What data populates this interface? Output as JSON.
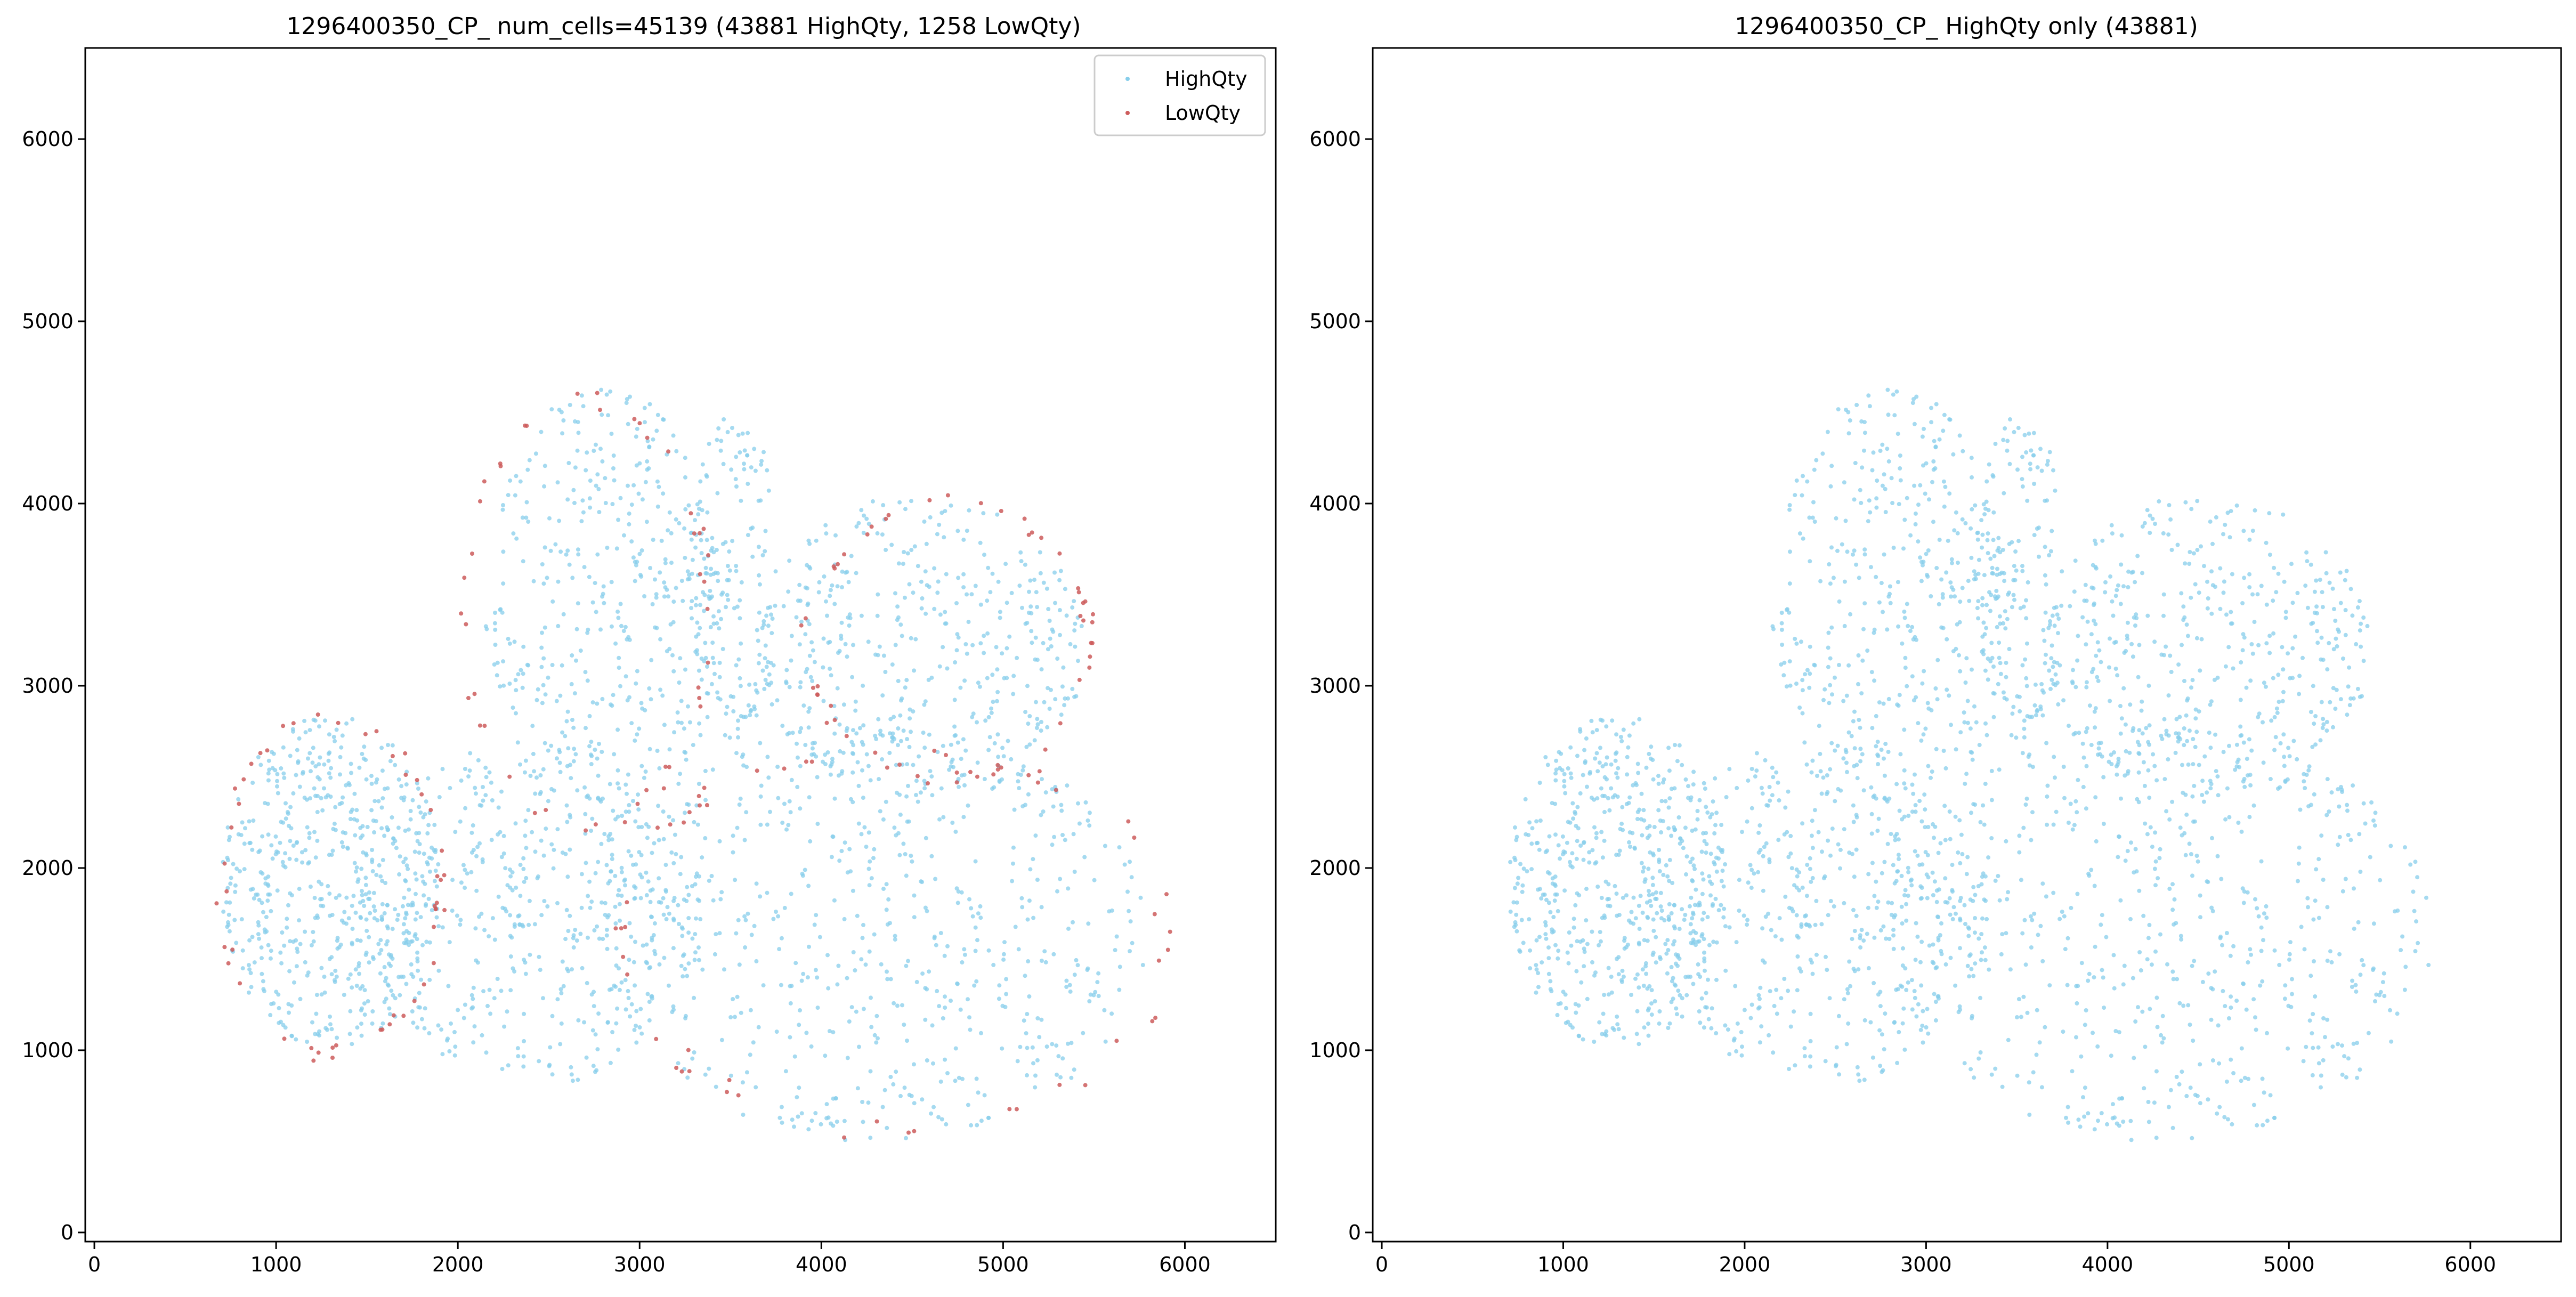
{
  "chart_data": [
    {
      "type": "scatter",
      "title": "1296400350_CP_ num_cells=45139 (43881 HighQty, 1258 LowQty)",
      "xlim": [
        -50,
        6500
      ],
      "ylim": [
        -50,
        6500
      ],
      "xticks": [
        0,
        1000,
        2000,
        3000,
        4000,
        5000,
        6000
      ],
      "yticks": [
        0,
        1000,
        2000,
        3000,
        4000,
        5000,
        6000
      ],
      "xtick_labels": [
        "0",
        "1000",
        "2000",
        "3000",
        "4000",
        "5000",
        "6000"
      ],
      "ytick_labels": [
        "0",
        "1000",
        "2000",
        "3000",
        "4000",
        "5000",
        "6000"
      ],
      "grid": false,
      "legend": {
        "placement": "top-right",
        "entries": [
          {
            "label": "HighQty",
            "color": "#87ceeb"
          },
          {
            "label": "LowQty",
            "color": "#cd5c5c"
          }
        ]
      },
      "series": [
        {
          "name": "HighQty",
          "color": "#87ceeb",
          "count": 43881
        },
        {
          "name": "LowQty",
          "color": "#cd5c5c",
          "count": 1258
        }
      ]
    },
    {
      "type": "scatter",
      "title": "1296400350_CP_ HighQty only (43881)",
      "xlim": [
        -50,
        6500
      ],
      "ylim": [
        -50,
        6500
      ],
      "xticks": [
        0,
        1000,
        2000,
        3000,
        4000,
        5000,
        6000
      ],
      "yticks": [
        0,
        1000,
        2000,
        3000,
        4000,
        5000,
        6000
      ],
      "xtick_labels": [
        "0",
        "1000",
        "2000",
        "3000",
        "4000",
        "5000",
        "6000"
      ],
      "ytick_labels": [
        "0",
        "1000",
        "2000",
        "3000",
        "4000",
        "5000",
        "6000"
      ],
      "grid": false,
      "series": [
        {
          "color": "#87ceeb",
          "count": 43881
        }
      ]
    }
  ]
}
